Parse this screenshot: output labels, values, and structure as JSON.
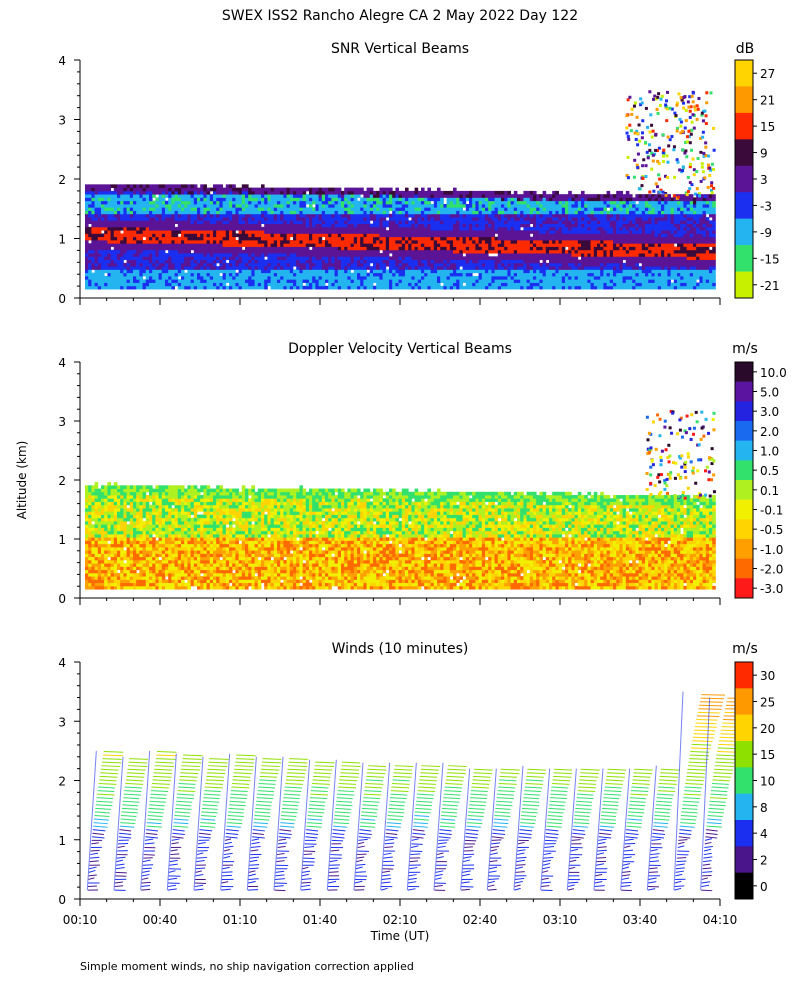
{
  "figure": {
    "title": "SWEX ISS2 Rancho Alegre CA   2 May 2022 Day 122",
    "ylabel": "Altitude (km)",
    "xlabel": "Time (UT)",
    "footnote": "Simple moment winds, no ship navigation correction applied"
  },
  "chart_data": [
    {
      "type": "heatmap",
      "title": "SNR Vertical Beams",
      "xlim": [
        "00:10",
        "04:10"
      ],
      "ylim": [
        0,
        4
      ],
      "yticks": [
        0,
        1,
        2,
        3,
        4
      ],
      "colorbar": {
        "unit": "dB",
        "labels": [
          "27",
          "21",
          "15",
          "9",
          "3",
          "-3",
          "-9",
          "-15",
          "-21"
        ],
        "colors": [
          "#ffd400",
          "#ff9900",
          "#ff2a00",
          "#3a0a3a",
          "#5a1495",
          "#1a2ff0",
          "#24b4f0",
          "#32e06c",
          "#c6f000"
        ]
      },
      "features": {
        "data_top_km": 1.9,
        "data_top_km_end": 1.7,
        "low_range_gate_km": 0.15,
        "late_period_extension_km": 3.5
      }
    },
    {
      "type": "heatmap",
      "title": "Doppler Velocity Vertical Beams",
      "xlim": [
        "00:10",
        "04:10"
      ],
      "ylim": [
        0,
        4
      ],
      "yticks": [
        0,
        1,
        2,
        3,
        4
      ],
      "colorbar": {
        "unit": "m/s",
        "labels": [
          "10.0",
          "5.0",
          "3.0",
          "2.0",
          "1.0",
          "0.5",
          "0.1",
          "-0.1",
          "-0.5",
          "-1.0",
          "-2.0",
          "-3.0"
        ],
        "colors": [
          "#2a0a2a",
          "#5a14a0",
          "#2424e0",
          "#1a6af0",
          "#24b4f0",
          "#32e06c",
          "#aef020",
          "#f0f000",
          "#ffd400",
          "#ffa000",
          "#ff6a00",
          "#ff1a1a"
        ]
      }
    },
    {
      "type": "scatter",
      "title": "Winds (10 minutes)",
      "xlim": [
        "00:10",
        "04:10"
      ],
      "ylim": [
        0,
        4
      ],
      "yticks": [
        0,
        1,
        2,
        3,
        4
      ],
      "xticks": [
        "00:10",
        "00:40",
        "01:10",
        "01:40",
        "02:10",
        "02:40",
        "03:10",
        "03:40",
        "04:10"
      ],
      "profile_times": [
        "00:15",
        "00:25",
        "00:35",
        "00:45",
        "00:55",
        "01:05",
        "01:15",
        "01:25",
        "01:35",
        "01:45",
        "01:55",
        "02:05",
        "02:15",
        "02:25",
        "02:35",
        "02:45",
        "02:55",
        "03:05",
        "03:15",
        "03:25",
        "03:35",
        "03:45",
        "03:55",
        "04:05"
      ],
      "profile_tops_km": [
        2.5,
        2.4,
        2.5,
        2.45,
        2.4,
        2.45,
        2.4,
        2.4,
        2.35,
        2.35,
        2.3,
        2.3,
        2.3,
        2.3,
        2.2,
        2.2,
        2.25,
        2.2,
        2.2,
        2.2,
        2.2,
        2.25,
        3.5,
        3.4
      ],
      "colorbar": {
        "unit": "m/s",
        "labels": [
          "30",
          "25",
          "20",
          "15",
          "10",
          "8",
          "4",
          "2",
          "0"
        ],
        "colors": [
          "#ff2a00",
          "#ff9900",
          "#ffd400",
          "#8ee000",
          "#32e06c",
          "#24b4f0",
          "#1a2ff0",
          "#4a148a",
          "#000000"
        ]
      }
    }
  ]
}
